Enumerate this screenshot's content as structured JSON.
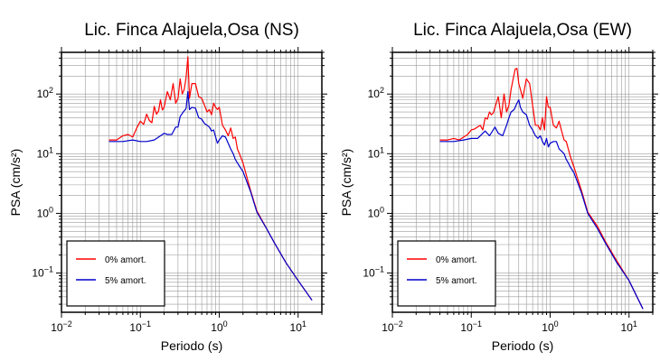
{
  "chart_data": [
    {
      "type": "line",
      "title": "Lic. Finca Alajuela,Osa (NS)",
      "xlabel": "Periodo (s)",
      "ylabel": "PSA (cm/s²)",
      "xscale": "log",
      "yscale": "log",
      "xlim": [
        0.01,
        20
      ],
      "ylim": [
        0.022,
        500
      ],
      "xticks": [
        {
          "value": 0.01,
          "base": "10",
          "exp": "−2"
        },
        {
          "value": 0.1,
          "base": "10",
          "exp": "−1"
        },
        {
          "value": 1,
          "base": "10",
          "exp": "0"
        },
        {
          "value": 10,
          "base": "10",
          "exp": "1"
        }
      ],
      "yticks": [
        {
          "value": 0.1,
          "base": "10",
          "exp": "−1"
        },
        {
          "value": 1,
          "base": "10",
          "exp": "0"
        },
        {
          "value": 10,
          "base": "10",
          "exp": "1"
        },
        {
          "value": 100,
          "base": "10",
          "exp": "2"
        }
      ],
      "grid": true,
      "legend_position": "bottom-left",
      "series": [
        {
          "name": "0% amort.",
          "color": "#ff0000",
          "x": [
            0.04,
            0.05,
            0.06,
            0.07,
            0.08,
            0.09,
            0.1,
            0.11,
            0.12,
            0.13,
            0.14,
            0.15,
            0.16,
            0.17,
            0.18,
            0.19,
            0.2,
            0.22,
            0.24,
            0.26,
            0.28,
            0.3,
            0.32,
            0.34,
            0.36,
            0.38,
            0.4,
            0.42,
            0.45,
            0.5,
            0.55,
            0.6,
            0.65,
            0.7,
            0.75,
            0.8,
            0.85,
            0.9,
            0.95,
            1.0,
            1.1,
            1.2,
            1.3,
            1.4,
            1.5,
            1.6,
            1.7,
            1.8,
            2.0,
            2.5,
            3.0,
            4.0,
            5.0,
            7.0,
            10.0,
            15.0
          ],
          "y": [
            17,
            17,
            20,
            21,
            19,
            27,
            35,
            31,
            46,
            36,
            33,
            62,
            46,
            52,
            80,
            54,
            60,
            110,
            80,
            150,
            70,
            85,
            180,
            100,
            120,
            190,
            420,
            85,
            150,
            150,
            90,
            85,
            65,
            50,
            55,
            45,
            70,
            60,
            55,
            60,
            30,
            25,
            20,
            27,
            18,
            19,
            12,
            10,
            7,
            2.4,
            1.1,
            0.55,
            0.32,
            0.15,
            0.075,
            0.035
          ]
        },
        {
          "name": "5% amort.",
          "color": "#0000cc",
          "x": [
            0.04,
            0.06,
            0.08,
            0.1,
            0.12,
            0.15,
            0.17,
            0.2,
            0.22,
            0.25,
            0.28,
            0.3,
            0.32,
            0.35,
            0.38,
            0.4,
            0.42,
            0.45,
            0.5,
            0.55,
            0.6,
            0.65,
            0.7,
            0.75,
            0.8,
            0.85,
            0.9,
            0.95,
            1.0,
            1.1,
            1.2,
            1.3,
            1.4,
            1.5,
            1.6,
            1.7,
            1.8,
            2.0,
            2.5,
            3.0,
            4.0,
            5.0,
            7.0,
            10.0,
            15.0
          ],
          "y": [
            16,
            16,
            17,
            16,
            16,
            17,
            19,
            22,
            21,
            21,
            28,
            28,
            42,
            50,
            57,
            110,
            55,
            60,
            58,
            40,
            38,
            32,
            30,
            28,
            24,
            25,
            19,
            15,
            17,
            20,
            19,
            15,
            12,
            10,
            8,
            7,
            6.2,
            5,
            2.3,
            1.05,
            0.55,
            0.32,
            0.15,
            0.075,
            0.035
          ]
        }
      ]
    },
    {
      "type": "line",
      "title": "Lic. Finca Alajuela,Osa (EW)",
      "xlabel": "Periodo (s)",
      "ylabel": "PSA (cm/s²)",
      "xscale": "log",
      "yscale": "log",
      "xlim": [
        0.01,
        20
      ],
      "ylim": [
        0.022,
        500
      ],
      "xticks": [
        {
          "value": 0.01,
          "base": "10",
          "exp": "−2"
        },
        {
          "value": 0.1,
          "base": "10",
          "exp": "−1"
        },
        {
          "value": 1,
          "base": "10",
          "exp": "0"
        },
        {
          "value": 10,
          "base": "10",
          "exp": "1"
        }
      ],
      "yticks": [
        {
          "value": 0.1,
          "base": "10",
          "exp": "−1"
        },
        {
          "value": 1,
          "base": "10",
          "exp": "0"
        },
        {
          "value": 10,
          "base": "10",
          "exp": "1"
        },
        {
          "value": 100,
          "base": "10",
          "exp": "2"
        }
      ],
      "grid": true,
      "legend_position": "bottom-left",
      "series": [
        {
          "name": "0% amort.",
          "color": "#ff0000",
          "x": [
            0.04,
            0.05,
            0.06,
            0.07,
            0.08,
            0.09,
            0.1,
            0.11,
            0.12,
            0.13,
            0.14,
            0.15,
            0.16,
            0.17,
            0.18,
            0.19,
            0.2,
            0.22,
            0.24,
            0.26,
            0.28,
            0.3,
            0.32,
            0.34,
            0.36,
            0.38,
            0.4,
            0.42,
            0.45,
            0.5,
            0.55,
            0.6,
            0.65,
            0.7,
            0.75,
            0.8,
            0.85,
            0.9,
            0.95,
            1.0,
            1.1,
            1.2,
            1.3,
            1.4,
            1.5,
            1.6,
            1.7,
            1.8,
            2.0,
            2.5,
            3.0,
            4.0,
            5.0,
            7.0,
            10.0,
            15.0
          ],
          "y": [
            17,
            17,
            18,
            17,
            19,
            21,
            25,
            26,
            28,
            30,
            25,
            40,
            38,
            50,
            45,
            48,
            60,
            90,
            40,
            100,
            50,
            65,
            120,
            180,
            260,
            270,
            150,
            120,
            85,
            180,
            150,
            65,
            30,
            30,
            25,
            40,
            25,
            90,
            60,
            60,
            30,
            27,
            35,
            24,
            17,
            16,
            12,
            9,
            6,
            2.4,
            1.05,
            0.6,
            0.34,
            0.16,
            0.075,
            0.025
          ]
        },
        {
          "name": "5% amort.",
          "color": "#0000cc",
          "x": [
            0.04,
            0.06,
            0.08,
            0.1,
            0.12,
            0.15,
            0.17,
            0.2,
            0.22,
            0.25,
            0.28,
            0.3,
            0.32,
            0.35,
            0.38,
            0.4,
            0.42,
            0.45,
            0.5,
            0.55,
            0.6,
            0.65,
            0.7,
            0.75,
            0.8,
            0.85,
            0.9,
            0.95,
            1.0,
            1.1,
            1.2,
            1.3,
            1.4,
            1.5,
            1.6,
            1.7,
            1.8,
            2.0,
            2.5,
            3.0,
            4.0,
            5.0,
            7.0,
            10.0,
            15.0
          ],
          "y": [
            16,
            16,
            17,
            18,
            18,
            24,
            20,
            28,
            22,
            20,
            30,
            40,
            50,
            55,
            70,
            80,
            60,
            50,
            45,
            30,
            25,
            20,
            18,
            20,
            16,
            14,
            18,
            13,
            15,
            16,
            16,
            12,
            11,
            10,
            8,
            7,
            6,
            4.8,
            2.2,
            1.0,
            0.55,
            0.32,
            0.15,
            0.075,
            0.025
          ]
        }
      ]
    }
  ]
}
